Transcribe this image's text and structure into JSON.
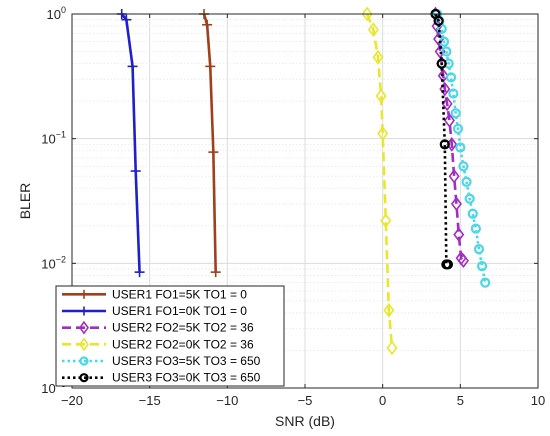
{
  "chart_data": {
    "type": "line",
    "xlabel": "SNR (dB)",
    "ylabel": "BLER",
    "xlim": [
      -20,
      10
    ],
    "ylim": [
      0.001,
      1
    ],
    "yscale": "log",
    "x_ticks": [
      {
        "value": -20,
        "label": "−20"
      },
      {
        "value": -15,
        "label": "−15"
      },
      {
        "value": -10,
        "label": "−10"
      },
      {
        "value": -5,
        "label": "−5"
      },
      {
        "value": 0,
        "label": "0"
      },
      {
        "value": 5,
        "label": "5"
      },
      {
        "value": 10,
        "label": "10"
      }
    ],
    "y_ticks": [
      {
        "value": 1,
        "base": "10",
        "exp": "0"
      },
      {
        "value": 0.1,
        "base": "10",
        "exp": "−1"
      },
      {
        "value": 0.01,
        "base": "10",
        "exp": "−2"
      },
      {
        "value": 0.001,
        "base": "10",
        "exp": "−3"
      }
    ],
    "grid": true,
    "legend_position": "bottom-left",
    "series": [
      {
        "name": "USER1 FO1=5K TO1 = 0",
        "color": "#a0401a",
        "line_style": "solid",
        "marker": "plus",
        "x": [
          -11.5,
          -11.3,
          -11.1,
          -10.9,
          -10.75
        ],
        "y": [
          1.0,
          0.82,
          0.38,
          0.078,
          0.0085
        ]
      },
      {
        "name": "USER1 FO1=0K TO1 = 0",
        "color": "#1f1fcc",
        "line_style": "solid",
        "marker": "plus",
        "x": [
          -16.8,
          -16.5,
          -16.1,
          -15.9,
          -15.65
        ],
        "y": [
          1.0,
          0.9,
          0.38,
          0.055,
          0.0085
        ]
      },
      {
        "name": "USER2 FO2=5K TO2 = 36",
        "color": "#a32cc4",
        "line_style": "dashed",
        "marker": "diamond",
        "x": [
          3.4,
          3.5,
          3.6,
          3.7,
          3.8,
          3.9,
          4.0,
          4.15,
          4.3,
          4.45,
          4.6,
          4.75,
          4.9,
          5.05,
          5.2
        ],
        "y": [
          1.0,
          0.8,
          0.63,
          0.5,
          0.4,
          0.32,
          0.25,
          0.19,
          0.14,
          0.09,
          0.05,
          0.03,
          0.017,
          0.011,
          0.0105
        ]
      },
      {
        "name": "USER2 FO2=0K TO2 = 36",
        "color": "#e8e82a",
        "line_style": "dashed",
        "marker": "diamond",
        "x": [
          -1.0,
          -0.6,
          -0.3,
          -0.1,
          0.0,
          0.2,
          0.4,
          0.6
        ],
        "y": [
          1.0,
          0.75,
          0.45,
          0.22,
          0.11,
          0.022,
          0.0042,
          0.0021
        ]
      },
      {
        "name": "USER3 FO3=5K TO3 = 650",
        "color": "#4ad8e8",
        "line_style": "dotted",
        "marker": "circle",
        "x": [
          3.5,
          3.65,
          3.8,
          3.95,
          4.1,
          4.25,
          4.4,
          4.55,
          4.7,
          4.85,
          5.0,
          5.2,
          5.4,
          5.6,
          5.8,
          6.0,
          6.2,
          6.4,
          6.6
        ],
        "y": [
          1.0,
          0.88,
          0.76,
          0.6,
          0.5,
          0.4,
          0.31,
          0.23,
          0.16,
          0.12,
          0.085,
          0.06,
          0.045,
          0.033,
          0.025,
          0.019,
          0.013,
          0.0095,
          0.007
        ]
      },
      {
        "name": "USER3 FO3=0K TO3 = 650",
        "color": "#000000",
        "line_style": "dotted",
        "marker": "circle",
        "x": [
          3.4,
          3.6,
          3.8,
          4.0,
          4.1,
          4.2
        ],
        "y": [
          1.0,
          0.88,
          0.4,
          0.09,
          0.0098,
          0.0098
        ]
      }
    ]
  }
}
